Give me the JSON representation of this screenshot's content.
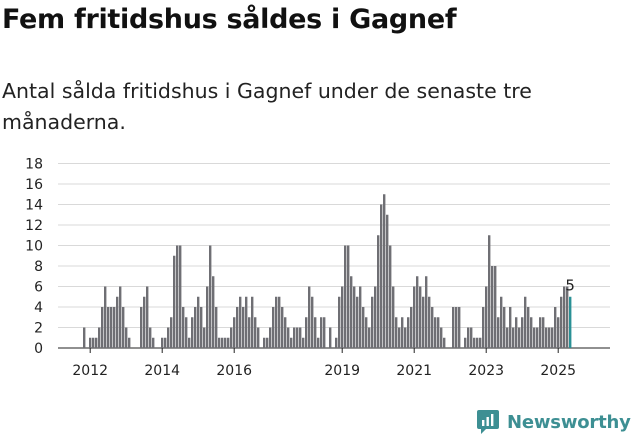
{
  "header": {
    "title": "Fem fritidshus såldes i Gagnef",
    "subtitle": "Antal sålda fritidshus i Gagnef under de senaste tre månaderna."
  },
  "brand": {
    "name": "Newsworthy",
    "color": "#3d8f93"
  },
  "colors": {
    "bar": "#6f6f74",
    "highlight": "#2a9196",
    "grid": "#d9d9d9",
    "axis": "#222222"
  },
  "chart_data": {
    "type": "bar",
    "title": "",
    "xlabel": "",
    "ylabel": "",
    "ylim": [
      0,
      18
    ],
    "y_ticks": [
      "0",
      "2",
      "4",
      "6",
      "8",
      "10",
      "12",
      "14",
      "16",
      "18"
    ],
    "x_ticks": [
      "2012",
      "2014",
      "2016",
      "2019",
      "2021",
      "2023",
      "2025"
    ],
    "grid": true,
    "x_start": "2011-11",
    "annotation": "5",
    "highlight_last": true,
    "values": [
      2,
      0,
      1,
      1,
      1,
      2,
      4,
      6,
      4,
      4,
      4,
      5,
      6,
      4,
      2,
      1,
      0,
      0,
      0,
      4,
      5,
      6,
      2,
      1,
      0,
      0,
      1,
      1,
      2,
      3,
      9,
      10,
      10,
      4,
      3,
      1,
      3,
      4,
      5,
      4,
      2,
      6,
      10,
      7,
      4,
      1,
      1,
      1,
      1,
      2,
      3,
      4,
      5,
      4,
      5,
      3,
      5,
      3,
      2,
      0,
      1,
      1,
      2,
      4,
      5,
      5,
      4,
      3,
      2,
      1,
      2,
      2,
      2,
      1,
      3,
      6,
      5,
      3,
      1,
      3,
      3,
      0,
      2,
      0,
      1,
      5,
      6,
      10,
      10,
      7,
      6,
      5,
      6,
      4,
      3,
      2,
      5,
      6,
      11,
      14,
      15,
      13,
      10,
      6,
      3,
      2,
      3,
      2,
      3,
      4,
      6,
      7,
      6,
      5,
      7,
      5,
      4,
      3,
      3,
      2,
      1,
      0,
      0,
      4,
      4,
      4,
      0,
      1,
      2,
      2,
      1,
      1,
      1,
      4,
      6,
      11,
      8,
      8,
      3,
      5,
      4,
      2,
      4,
      2,
      3,
      2,
      3,
      5,
      4,
      3,
      2,
      2,
      3,
      3,
      2,
      2,
      2,
      4,
      3,
      5,
      6,
      6,
      5
    ]
  }
}
